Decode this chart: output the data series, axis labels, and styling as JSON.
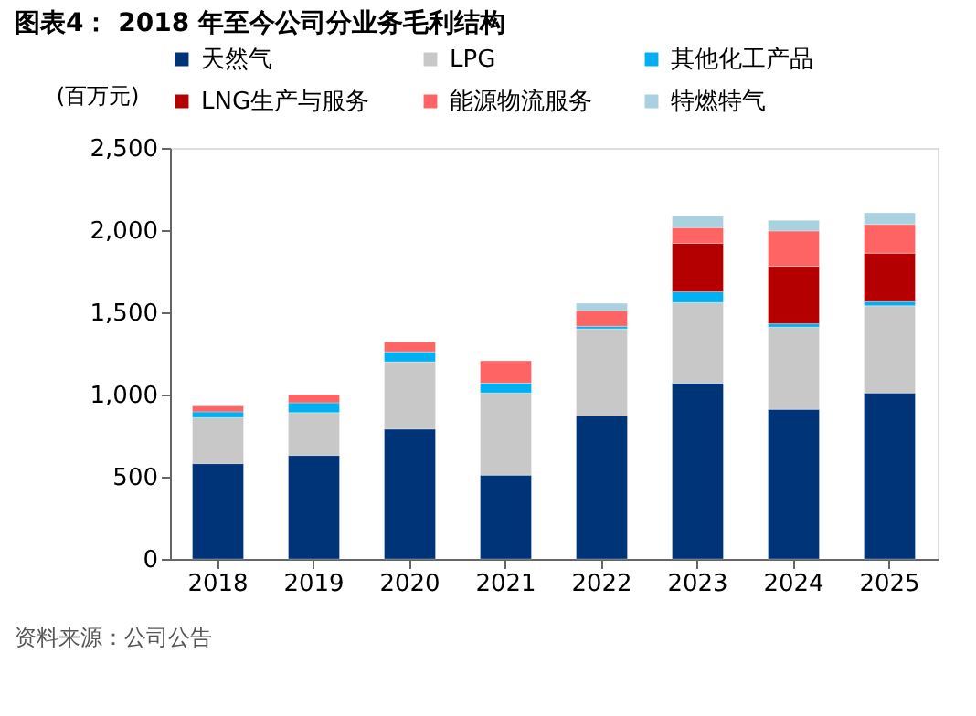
{
  "chart_data": {
    "type": "bar",
    "title": "图表4： 2018 年至今公司分业务毛利结构",
    "ylabel": "(百万元)",
    "categories": [
      "2018",
      "2019",
      "2020",
      "2021",
      "2022",
      "2023",
      "2024",
      "2025"
    ],
    "stacked": true,
    "ylim": [
      0,
      2500
    ],
    "yticks": [
      0,
      500,
      {
        "value": 1000,
        "label": "1,000"
      },
      {
        "value": 1500,
        "label": "1,500"
      },
      {
        "value": 2000,
        "label": "2,000"
      },
      {
        "value": 2500,
        "label": "2,500"
      }
    ],
    "grid": false,
    "legend": "top",
    "series": [
      {
        "name": "天然气",
        "color": "#003478",
        "values": [
          580,
          630,
          790,
          510,
          870,
          1070,
          910,
          1010
        ]
      },
      {
        "name": "LPG",
        "color": "#c8c8c8",
        "values": [
          280,
          260,
          410,
          500,
          530,
          490,
          500,
          530
        ]
      },
      {
        "name": "其他化工产品",
        "color": "#00b0f0",
        "values": [
          35,
          60,
          60,
          60,
          15,
          65,
          20,
          25
        ]
      },
      {
        "name": "LNG生产与服务",
        "color": "#b40000",
        "values": [
          null,
          null,
          null,
          null,
          null,
          295,
          350,
          295
        ]
      },
      {
        "name": "能源物流服务",
        "color": "#ff6464",
        "values": [
          35,
          50,
          60,
          135,
          95,
          95,
          215,
          175
        ]
      },
      {
        "name": "特燃特气",
        "color": "#a9d1e0",
        "values": [
          null,
          null,
          null,
          null,
          45,
          70,
          65,
          70
        ]
      }
    ],
    "annotations": [
      "资料来源：公司公告"
    ]
  }
}
